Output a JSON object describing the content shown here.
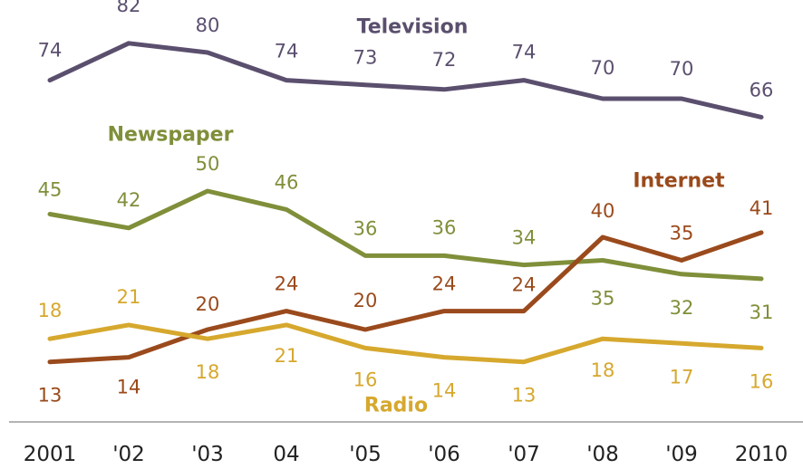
{
  "chart_data": {
    "type": "line",
    "title": "",
    "xlabel": "",
    "ylabel": "",
    "categories": [
      "2001",
      "'02",
      "'03",
      "04",
      "'05",
      "'06",
      "'07",
      "'08",
      "'09",
      "2010"
    ],
    "ylim": [
      0,
      100
    ],
    "grid": false,
    "series": [
      {
        "name": "Television",
        "color": "#5b4f6e",
        "values": [
          74,
          82,
          80,
          74,
          73,
          72,
          74,
          70,
          70,
          66
        ]
      },
      {
        "name": "Newspaper",
        "color": "#7f8f3a",
        "values": [
          45,
          42,
          50,
          46,
          36,
          36,
          34,
          35,
          32,
          31
        ]
      },
      {
        "name": "Internet",
        "color": "#9a4a1c",
        "values": [
          13,
          14,
          20,
          24,
          20,
          24,
          24,
          40,
          35,
          41
        ]
      },
      {
        "name": "Radio",
        "color": "#d6a82e",
        "values": [
          18,
          21,
          18,
          21,
          16,
          14,
          13,
          18,
          17,
          16
        ]
      }
    ]
  }
}
